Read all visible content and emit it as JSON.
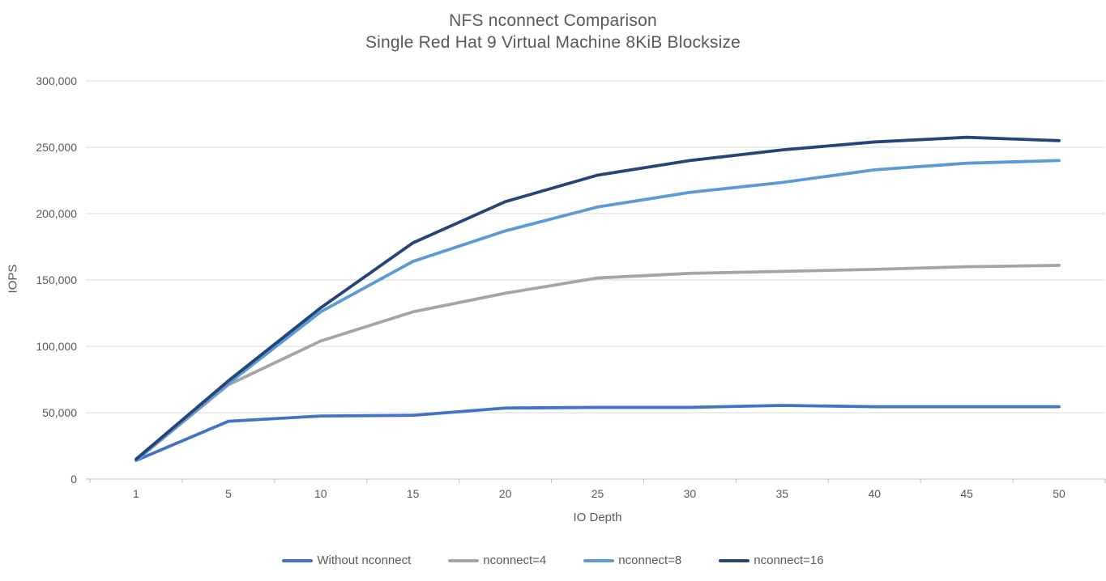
{
  "chart_data": {
    "type": "line",
    "title": "NFS nconnect Comparison",
    "subtitle": "Single Red Hat 9 Virtual Machine 8KiB Blocksize",
    "xlabel": "IO Depth",
    "ylabel": "IOPS",
    "categories": [
      1,
      5,
      10,
      15,
      20,
      25,
      30,
      35,
      40,
      45,
      50
    ],
    "ylim": [
      0,
      300000
    ],
    "ytick_step": 50000,
    "grid": true,
    "legend_position": "bottom",
    "series": [
      {
        "name": "Without nconnect",
        "color": "#4472C4",
        "values": [
          14000,
          43500,
          47500,
          48000,
          53500,
          54000,
          54000,
          55500,
          54500,
          54500,
          54500
        ]
      },
      {
        "name": "nconnect=4",
        "color": "#A5A5A5",
        "values": [
          14000,
          71000,
          104000,
          126000,
          140000,
          151500,
          155000,
          156500,
          158000,
          160000,
          161000
        ]
      },
      {
        "name": "nconnect=8",
        "color": "#5B9BD5",
        "values": [
          14000,
          72000,
          126000,
          164000,
          187000,
          205000,
          216000,
          223500,
          233000,
          238000,
          240000
        ]
      },
      {
        "name": "nconnect=16",
        "color": "#264478",
        "values": [
          15000,
          74000,
          129000,
          178000,
          209000,
          229000,
          240000,
          248000,
          254000,
          257500,
          255000
        ]
      }
    ],
    "colors": {
      "text": "#595959",
      "gridline": "#D9D9D9",
      "axis_line": "#BFBFBF"
    }
  }
}
